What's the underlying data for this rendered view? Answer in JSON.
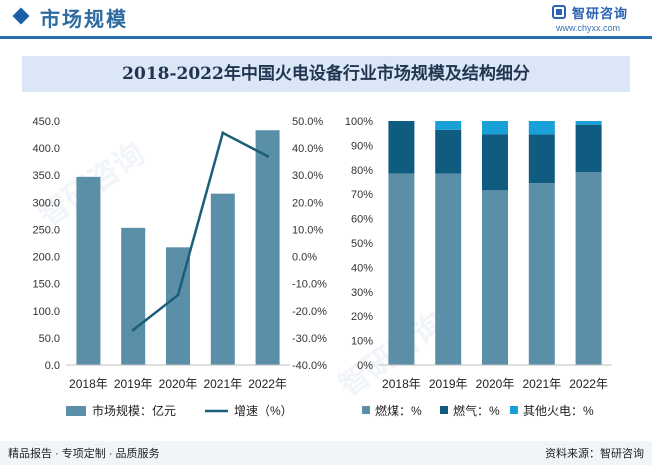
{
  "header": {
    "section_title": "市场规模",
    "logo_name": "智研咨询",
    "logo_url": "www.chyxx.com"
  },
  "title": "2018-2022年中国火电设备行业市场规模及结构细分",
  "footer": {
    "left": "精品报告 · 专项定制 · 品质服务",
    "right": "资料来源：智研咨询"
  },
  "watermark": "智研咨询",
  "colors": {
    "bar": "#5b8fa8",
    "line": "#1b5e7a",
    "coal": "#5b8fa8",
    "gas": "#0f5c80",
    "other": "#1aa0d8"
  },
  "chart_data": [
    {
      "type": "bar+line",
      "categories": [
        "2018年",
        "2019年",
        "2020年",
        "2021年",
        "2022年"
      ],
      "series": [
        {
          "name": "市场规模：亿元",
          "kind": "bar",
          "axis": "left",
          "values": [
            347,
            253,
            217,
            316,
            433
          ]
        },
        {
          "name": "增速（%）",
          "kind": "line",
          "axis": "right",
          "values": [
            null,
            -27.1,
            -14.2,
            45.6,
            37.0
          ]
        }
      ],
      "left_axis": {
        "ylim": [
          0,
          450
        ],
        "step": 50,
        "ticks": [
          "0.0",
          "50.0",
          "100.0",
          "150.0",
          "200.0",
          "250.0",
          "300.0",
          "350.0",
          "400.0",
          "450.0"
        ]
      },
      "right_axis": {
        "ylim": [
          -40,
          50
        ],
        "step": 10,
        "ticks": [
          "-40.0%",
          "-30.0%",
          "-20.0%",
          "-10.0%",
          "0.0%",
          "10.0%",
          "20.0%",
          "30.0%",
          "40.0%",
          "50.0%"
        ]
      },
      "legend": [
        "市场规模：亿元",
        "增速（%）"
      ]
    },
    {
      "type": "stacked_bar_100",
      "categories": [
        "2018年",
        "2019年",
        "2020年",
        "2021年",
        "2022年"
      ],
      "series": [
        {
          "name": "燃煤：%",
          "values": [
            78.5,
            78.4,
            71.6,
            74.5,
            79.0
          ]
        },
        {
          "name": "燃气：%",
          "values": [
            21.5,
            18.0,
            23.0,
            20.0,
            19.5
          ]
        },
        {
          "name": "其他火电：%",
          "values": [
            0.0,
            3.6,
            5.4,
            5.5,
            1.5
          ]
        }
      ],
      "y_axis": {
        "ylim": [
          0,
          100
        ],
        "step": 10,
        "ticks": [
          "0%",
          "10%",
          "20%",
          "30%",
          "40%",
          "50%",
          "60%",
          "70%",
          "80%",
          "90%",
          "100%"
        ]
      },
      "legend": [
        "燃煤：%",
        "燃气：%",
        "其他火电：%"
      ]
    }
  ]
}
